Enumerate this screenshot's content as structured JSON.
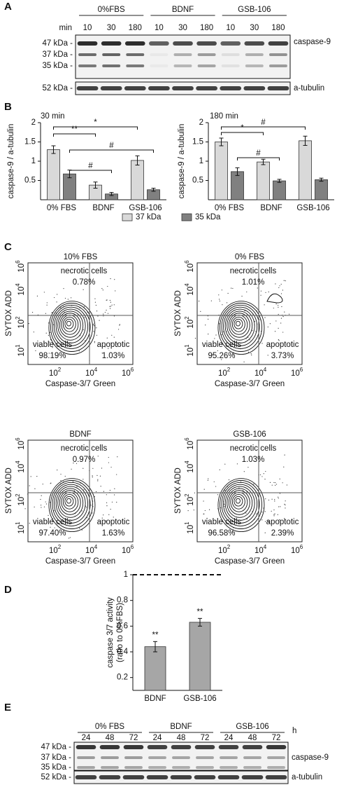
{
  "panels": {
    "a": "A",
    "b": "B",
    "c": "C",
    "d": "D",
    "e": "E"
  },
  "blot_a": {
    "groups": [
      "0%FBS",
      "BDNF",
      "GSB-106"
    ],
    "unit": "min",
    "times": [
      "10",
      "30",
      "180"
    ],
    "markers": [
      "47 kDa -",
      "37 kDa -",
      "35 kDa -"
    ],
    "loading_marker": "52 kDa -",
    "target": "caspase-9",
    "loading": "a-tubulin"
  },
  "chart_data": [
    {
      "type": "bar",
      "subtitle": "30 min",
      "y_label": [
        "caspase-9 / a-tubulin"
      ],
      "categories": [
        "0% FBS",
        "BDNF",
        "GSB-106"
      ],
      "series": [
        {
          "name": "37 kDa",
          "color": "#d9d9d9",
          "values": [
            1.3,
            0.38,
            1.02
          ],
          "errors": [
            0.1,
            0.08,
            0.12
          ]
        },
        {
          "name": "35 kDa",
          "color": "#808080",
          "values": [
            0.67,
            0.15,
            0.26
          ],
          "errors": [
            0.1,
            0.04,
            0.04
          ]
        }
      ],
      "ylim": [
        0,
        2
      ],
      "yticks": [
        0.5,
        1,
        1.5,
        2
      ],
      "annotations": [
        "*",
        "**",
        "#",
        "#"
      ],
      "legend": "bottom"
    },
    {
      "type": "bar",
      "subtitle": "180 min",
      "y_label": [
        "caspase-9 / a-tubulin"
      ],
      "categories": [
        "0% FBS",
        "BDNF",
        "GSB-106"
      ],
      "series": [
        {
          "name": "37 kDa",
          "color": "#d9d9d9",
          "values": [
            1.5,
            0.98,
            1.53
          ],
          "errors": [
            0.1,
            0.07,
            0.12
          ]
        },
        {
          "name": "35 kDa",
          "color": "#808080",
          "values": [
            0.73,
            0.49,
            0.52
          ],
          "errors": [
            0.1,
            0.04,
            0.04
          ]
        }
      ],
      "ylim": [
        0,
        2
      ],
      "yticks": [
        0.5,
        1,
        1.5,
        2
      ],
      "annotations": [
        "#",
        "*",
        "#"
      ]
    },
    {
      "type": "bar",
      "y_label": [
        "caspase 3/7 activity",
        "(ratio to 0%FBS)"
      ],
      "categories": [
        "BDNF",
        "GSB-106"
      ],
      "values": [
        0.44,
        0.63
      ],
      "errors": [
        0.04,
        0.03
      ],
      "color": "#a6a6a6",
      "ylim": [
        0.1,
        1
      ],
      "yticks": [
        0.2,
        0.4,
        0.6,
        0.8,
        1
      ],
      "annotations": [
        "**",
        "**"
      ],
      "reference_line": 1
    }
  ],
  "flow": {
    "x_label": "Caspase-3/7 Green",
    "y_label": "SYTOX ADD",
    "x_ticks": [
      {
        "base": "10",
        "exp": "2"
      },
      {
        "base": "10",
        "exp": "4"
      },
      {
        "base": "10",
        "exp": "6"
      }
    ],
    "y_ticks": [
      {
        "base": "10",
        "exp": "1"
      },
      {
        "base": "10",
        "exp": "2"
      },
      {
        "base": "10",
        "exp": "4"
      },
      {
        "base": "10",
        "exp": "6"
      }
    ],
    "necrotic_label": "necrotic cells",
    "viable_label": "viable cells",
    "apoptotic_label": "apoptotic",
    "plots": [
      {
        "title": "10% FBS",
        "necrotic": "0.78%",
        "viable": "98.19%",
        "apoptotic": "1.03%"
      },
      {
        "title": "0% FBS",
        "necrotic": "1.01%",
        "viable": "95.26%",
        "apoptotic": "3.73%"
      },
      {
        "title": "BDNF",
        "necrotic": "0.97%",
        "viable": "97.40%",
        "apoptotic": "1.63%"
      },
      {
        "title": "GSB-106",
        "necrotic": "1.03%",
        "viable": "96.58%",
        "apoptotic": "2.39%"
      }
    ]
  },
  "blot_e": {
    "groups": [
      "0% FBS",
      "BDNF",
      "GSB-106"
    ],
    "unit": "h",
    "times": [
      "24",
      "48",
      "72"
    ],
    "markers": [
      "47 kDa -",
      "37 kDa -",
      "35 kDa -"
    ],
    "loading_marker": "52 kDa -",
    "target": "caspase-9",
    "loading": "a-tubulin"
  }
}
